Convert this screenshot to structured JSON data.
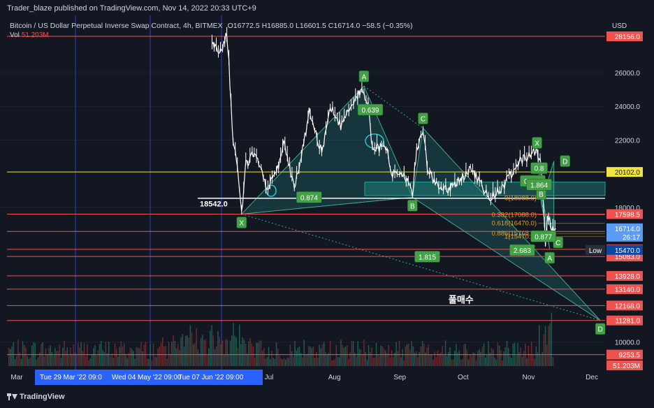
{
  "header": {
    "published_by": "Trader_blaze published on TradingView.com, Nov 14, 2022 20:33 UTC+9",
    "symbol": "Bitcoin / US Dollar Perpetual Inverse Swap Contract, 4h, BITMEX",
    "ohlc": "O16772.5  H16885.0  L16601.5  C16714.0  −58.5 (−0.35%)",
    "vol_label": "Vol",
    "vol_value": "51.203M"
  },
  "footer": {
    "logo": "TradingView"
  },
  "chart_data": {
    "type": "candlestick",
    "currency": "USD",
    "ylim": [
      9000,
      28600
    ],
    "y_ticks": [
      "26000.0",
      "24000.0",
      "22000.0",
      "18000.0",
      "10000.0"
    ],
    "x_ticks": [
      "Mar",
      "Jul",
      "Aug",
      "Sep",
      "Oct",
      "Nov",
      "Dec"
    ],
    "date_markers": [
      "Tue 29 Mar '22   09:0",
      "Wed 04 May '22   09:00",
      "Tue 07 Jun '22   09:00"
    ],
    "price_path": [
      [
        "Jun 4",
        27800
      ],
      [
        "Jun 8",
        27200
      ],
      [
        "Jun 11",
        28300
      ],
      [
        "Jun 12",
        26500
      ],
      [
        "Jun 14",
        22000
      ],
      [
        "Jun 16",
        20500
      ],
      [
        "Jun 18",
        17600
      ],
      [
        "Jun 20",
        20500
      ],
      [
        "Jun 24",
        21200
      ],
      [
        "Jun 30",
        19200
      ],
      [
        "Jul 4",
        19800
      ],
      [
        "Jul 8",
        21700
      ],
      [
        "Jul 13",
        19200
      ],
      [
        "Jul 18",
        22200
      ],
      [
        "Jul 20",
        23800
      ],
      [
        "Jul 26",
        21200
      ],
      [
        "Jul 30",
        24000
      ],
      [
        "Aug 4",
        22800
      ],
      [
        "Aug 10",
        24200
      ],
      [
        "Aug 14",
        25100
      ],
      [
        "Aug 17",
        24000
      ],
      [
        "Aug 19",
        21500
      ],
      [
        "Aug 26",
        21600
      ],
      [
        "Aug 28",
        20000
      ],
      [
        "Sep 3",
        19900
      ],
      [
        "Sep 7",
        18800
      ],
      [
        "Sep 9",
        21500
      ],
      [
        "Sep 12",
        22700
      ],
      [
        "Sep 14",
        20300
      ],
      [
        "Sep 20",
        19000
      ],
      [
        "Sep 26",
        19200
      ],
      [
        "Oct 5",
        20300
      ],
      [
        "Oct 13",
        18600
      ],
      [
        "Oct 20",
        19200
      ],
      [
        "Oct 26",
        20500
      ],
      [
        "Oct 29",
        20800
      ],
      [
        "Nov 5",
        21400
      ],
      [
        "Nov 7",
        20500
      ],
      [
        "Nov 8",
        18400
      ],
      [
        "Nov 9",
        15700
      ],
      [
        "Nov 10",
        17700
      ],
      [
        "Nov 12",
        16600
      ],
      [
        "Nov 14",
        16714
      ]
    ],
    "levels": [
      {
        "price": 28156.0,
        "label": "28156.0",
        "color": "#ef5350"
      },
      {
        "price": 20102.0,
        "label": "20102.0",
        "color": "#f0e442"
      },
      {
        "price": 17598.5,
        "label": "17598.5",
        "color": "#ef5350"
      },
      {
        "price": 16569.0,
        "label": "16569.0",
        "color": "#ef5350"
      },
      {
        "price": 15505.5,
        "label": "15505.5",
        "color": "#ef5350"
      },
      {
        "price": 15083.0,
        "label": "15083.0",
        "color": "#ef5350"
      },
      {
        "price": 13928.0,
        "label": "13928.0",
        "color": "#ef5350"
      },
      {
        "price": 13140.0,
        "label": "13140.0",
        "color": "#ef5350"
      },
      {
        "price": 12168.0,
        "label": "12168.0",
        "color": "#ef5350"
      },
      {
        "price": 11281.0,
        "label": "11281.0",
        "color": "#ef5350"
      },
      {
        "price": 9253.5,
        "label": "9253.5",
        "color": "#ef5350"
      }
    ],
    "current_price": {
      "price": 16714.0,
      "label": "16714.0",
      "countdown": "26:17",
      "color": "#5b9cf6"
    },
    "low": {
      "price": 15470.0,
      "label": "Low",
      "value": "15470.0"
    },
    "volume_badge": "51.203M",
    "support_line": {
      "price": 18542.0,
      "label": "18542.0"
    },
    "harmonic_points": [
      {
        "label": "X",
        "date": "Jun 18",
        "price": 17600
      },
      {
        "label": "A",
        "date": "Aug 15",
        "price": 25200
      },
      {
        "label": "B",
        "date": "Sep 7",
        "price": 18600
      },
      {
        "label": "C",
        "date": "Sep 12",
        "price": 22700
      },
      {
        "label": "D",
        "date": "Dec 5",
        "price": 11281
      }
    ],
    "small_pattern_points": [
      {
        "label": "X",
        "date": "Nov 5",
        "price": 21500
      },
      {
        "label": "A",
        "date": "Nov 11",
        "price": 15500
      },
      {
        "label": "B",
        "date": "Nov 7",
        "price": 18300
      },
      {
        "label": "C",
        "date": "Nov 13",
        "price": 16250
      },
      {
        "label": "D",
        "date": "Nov 13",
        "price": 20750
      }
    ],
    "ratios": [
      {
        "text": "0.639",
        "date": "Aug 18",
        "price": 23800
      },
      {
        "text": "0.874",
        "date": "Jul 20",
        "price": 18600
      },
      {
        "text": "1.815",
        "date": "Sep 14",
        "price": 15070
      },
      {
        "text": "2.683",
        "date": "Oct 29",
        "price": 15460
      },
      {
        "text": "0.8",
        "date": "Nov 6",
        "price": 20330
      },
      {
        "text": "0.593",
        "date": "Nov 3",
        "price": 19570
      },
      {
        "text": "1.864",
        "date": "Nov 6",
        "price": 19350
      },
      {
        "text": "0.877",
        "date": "Nov 8",
        "price": 16280
      }
    ],
    "fib_levels": [
      {
        "text": "0(18088.0)",
        "price": 18550
      },
      {
        "text": "0.382(17088.0)",
        "price": 17550
      },
      {
        "text": "0.618(16470.0)",
        "price": 17050
      },
      {
        "text": "0.886(15768.5)",
        "price": 16450
      },
      {
        "text": "1(15470.0)",
        "price": 16270
      }
    ],
    "annotation": {
      "text": "풀매수",
      "date": "Sep 30",
      "price": 12320
    }
  }
}
